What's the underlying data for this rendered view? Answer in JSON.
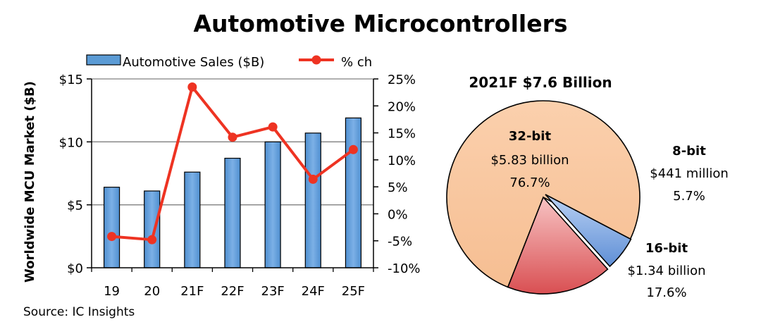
{
  "title": "Automotive Microcontrollers",
  "source": "Source: IC Insights",
  "chart_data": [
    {
      "type": "bar",
      "combo": "bar+line",
      "categories": [
        "19",
        "20",
        "21F",
        "22F",
        "23F",
        "24F",
        "25F"
      ],
      "series": [
        {
          "name": "Automotive Sales ($B)",
          "kind": "bar",
          "axis": "left",
          "color": "#5b9bd5",
          "values": [
            6.4,
            6.1,
            7.6,
            8.7,
            10.0,
            10.7,
            11.9
          ]
        },
        {
          "name": "% ch",
          "kind": "line",
          "axis": "right",
          "color": "#ee3322",
          "values": [
            -4.2,
            -4.8,
            23.5,
            14.2,
            16.1,
            6.4,
            11.9
          ]
        }
      ],
      "ylabel": "Worldwide MCU Market ($B)",
      "ylim": [
        0,
        15
      ],
      "yticks": [
        "$0",
        "$5",
        "$10",
        "$15"
      ],
      "y2lim": [
        -10,
        25
      ],
      "y2ticks": [
        "-10%",
        "-5%",
        "0%",
        "5%",
        "10%",
        "15%",
        "20%",
        "25%"
      ],
      "grid": true,
      "legend": "top"
    },
    {
      "type": "pie",
      "title": "2021F $7.6 Billion",
      "slices": [
        {
          "name": "32-bit",
          "amount": "$5.83 billion",
          "percent_label": "76.7%",
          "value": 76.7,
          "color": "#f9c6a0"
        },
        {
          "name": "8-bit",
          "amount": "$441 million",
          "percent_label": "5.7%",
          "value": 5.7,
          "color": "#7fa9e3"
        },
        {
          "name": "16-bit",
          "amount": "$1.34 billion",
          "percent_label": "17.6%",
          "value": 17.6,
          "color": "#e8747a"
        }
      ]
    }
  ]
}
